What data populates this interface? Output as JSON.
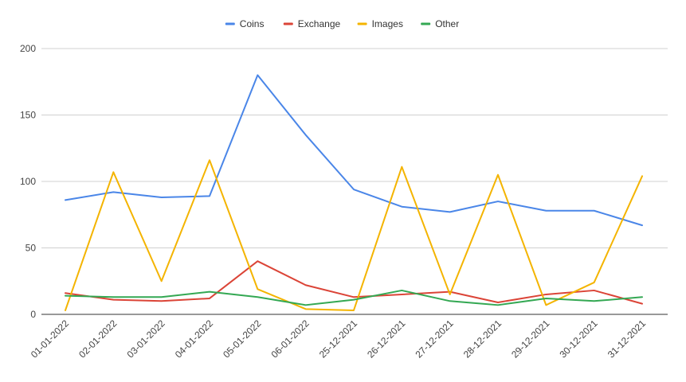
{
  "chart_data": {
    "type": "line",
    "categories": [
      "01-01-2022",
      "02-01-2022",
      "03-01-2022",
      "04-01-2022",
      "05-01-2022",
      "06-01-2022",
      "25-12-2021",
      "26-12-2021",
      "27-12-2021",
      "28-12-2021",
      "29-12-2021",
      "30-12-2021",
      "31-12-2021"
    ],
    "series": [
      {
        "name": "Coins",
        "color": "#4a86e8",
        "values": [
          86,
          92,
          88,
          89,
          180,
          135,
          94,
          81,
          77,
          85,
          78,
          78,
          67
        ]
      },
      {
        "name": "Exchange",
        "color": "#db4437",
        "values": [
          16,
          11,
          10,
          12,
          40,
          22,
          13,
          15,
          17,
          9,
          15,
          18,
          8
        ]
      },
      {
        "name": "Images",
        "color": "#f4b400",
        "values": [
          3,
          107,
          25,
          116,
          19,
          4,
          3,
          111,
          15,
          105,
          7,
          24,
          104
        ]
      },
      {
        "name": "Other",
        "color": "#34a853",
        "values": [
          14,
          13,
          13,
          17,
          13,
          7,
          11,
          18,
          10,
          7,
          12,
          10,
          13
        ]
      }
    ],
    "yticks": [
      "0",
      "50",
      "100",
      "150",
      "200"
    ],
    "ylim": [
      0,
      200
    ],
    "grid": true,
    "legend_position": "top",
    "title": "",
    "xlabel": "",
    "ylabel": ""
  }
}
